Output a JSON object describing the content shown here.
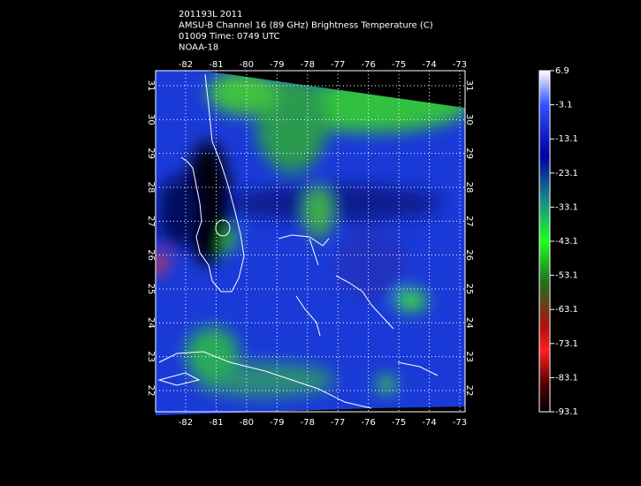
{
  "header": {
    "lines": [
      "201193L 2011",
      "AMSU-B Channel 16 (89 GHz) Brightness Temperature (C)",
      "01009 Time: 0749 UTC",
      "NOAA-18"
    ]
  },
  "map": {
    "lon_ticks": [
      -82,
      -81,
      -80,
      -79,
      -78,
      -77,
      -76,
      -75,
      -74,
      -73
    ],
    "lat_ticks": [
      31,
      30,
      29,
      28,
      27,
      26,
      25,
      24,
      23,
      22
    ]
  },
  "colorbar": {
    "ticks": [
      6.9,
      -3.1,
      -13.1,
      -23.1,
      -33.1,
      -43.1,
      -53.1,
      -63.1,
      -73.1,
      -83.1,
      -93.1
    ]
  }
}
